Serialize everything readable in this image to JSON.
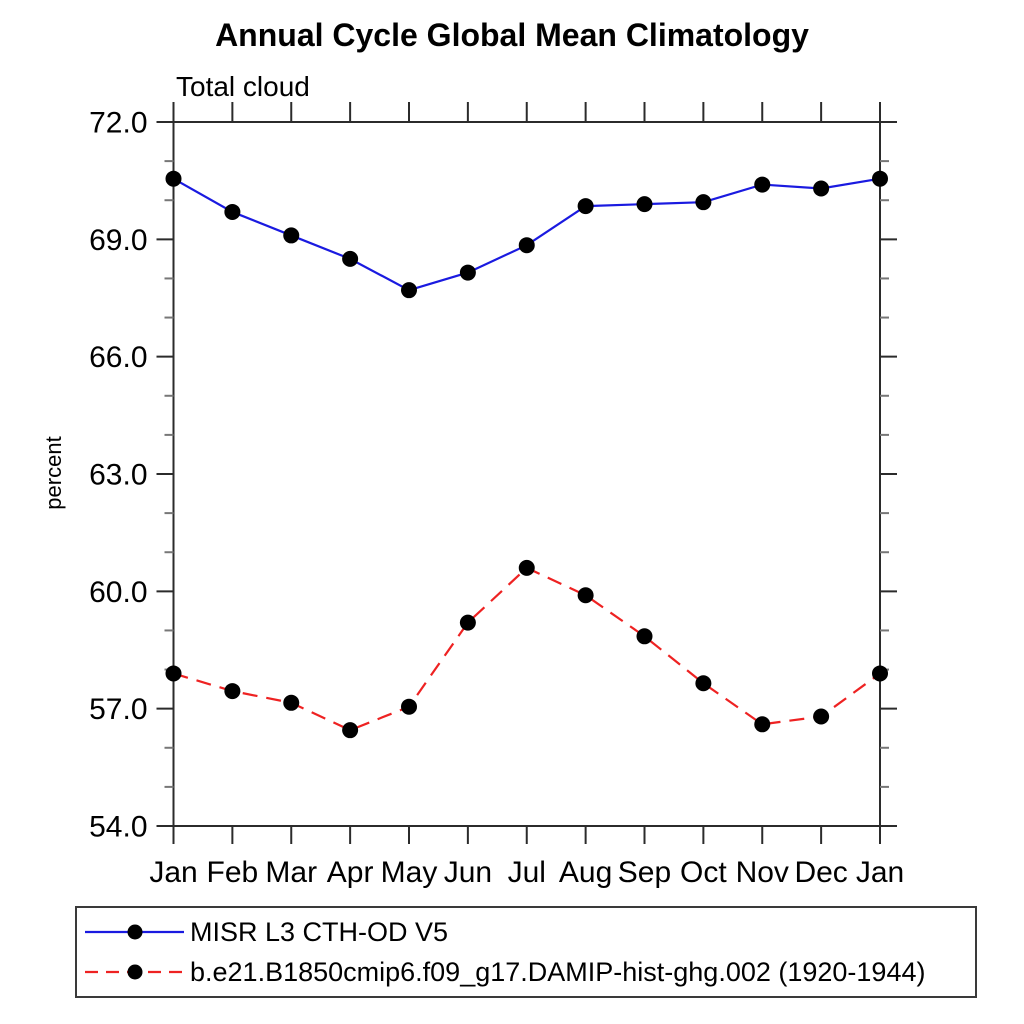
{
  "chart_data": {
    "type": "line",
    "title": "Annual Cycle Global Mean Climatology",
    "subtitle": "Total cloud",
    "ylabel": "percent",
    "xlabel": "",
    "categories": [
      "Jan",
      "Feb",
      "Mar",
      "Apr",
      "May",
      "Jun",
      "Jul",
      "Aug",
      "Sep",
      "Oct",
      "Nov",
      "Dec",
      "Jan"
    ],
    "ylim": [
      54.0,
      72.0
    ],
    "ytick_major": [
      54.0,
      57.0,
      60.0,
      63.0,
      66.0,
      69.0,
      72.0
    ],
    "ytick_minor_step": 1.0,
    "ytick_label_format": "one_decimal",
    "grid": false,
    "legend_position": "bottom",
    "marker": "filled-circle",
    "marker_color": "#000000",
    "frame_color": "#2b2b2b",
    "minor_tick_color": "#777777",
    "series": [
      {
        "name": "MISR L3 CTH-OD V5",
        "color": "#1a1ae0",
        "line_style": "solid",
        "values": [
          70.55,
          69.7,
          69.1,
          68.5,
          67.7,
          68.15,
          68.85,
          69.85,
          69.9,
          69.95,
          70.4,
          70.3,
          70.55
        ]
      },
      {
        "name": "b.e21.B1850cmip6.f09_g17.DAMIP-hist-ghg.002 (1920-1944)",
        "color": "#ee2222",
        "line_style": "dashed",
        "values": [
          57.9,
          57.45,
          57.15,
          56.45,
          57.05,
          59.2,
          60.6,
          59.9,
          58.85,
          57.65,
          56.6,
          56.8,
          57.9
        ]
      }
    ]
  }
}
